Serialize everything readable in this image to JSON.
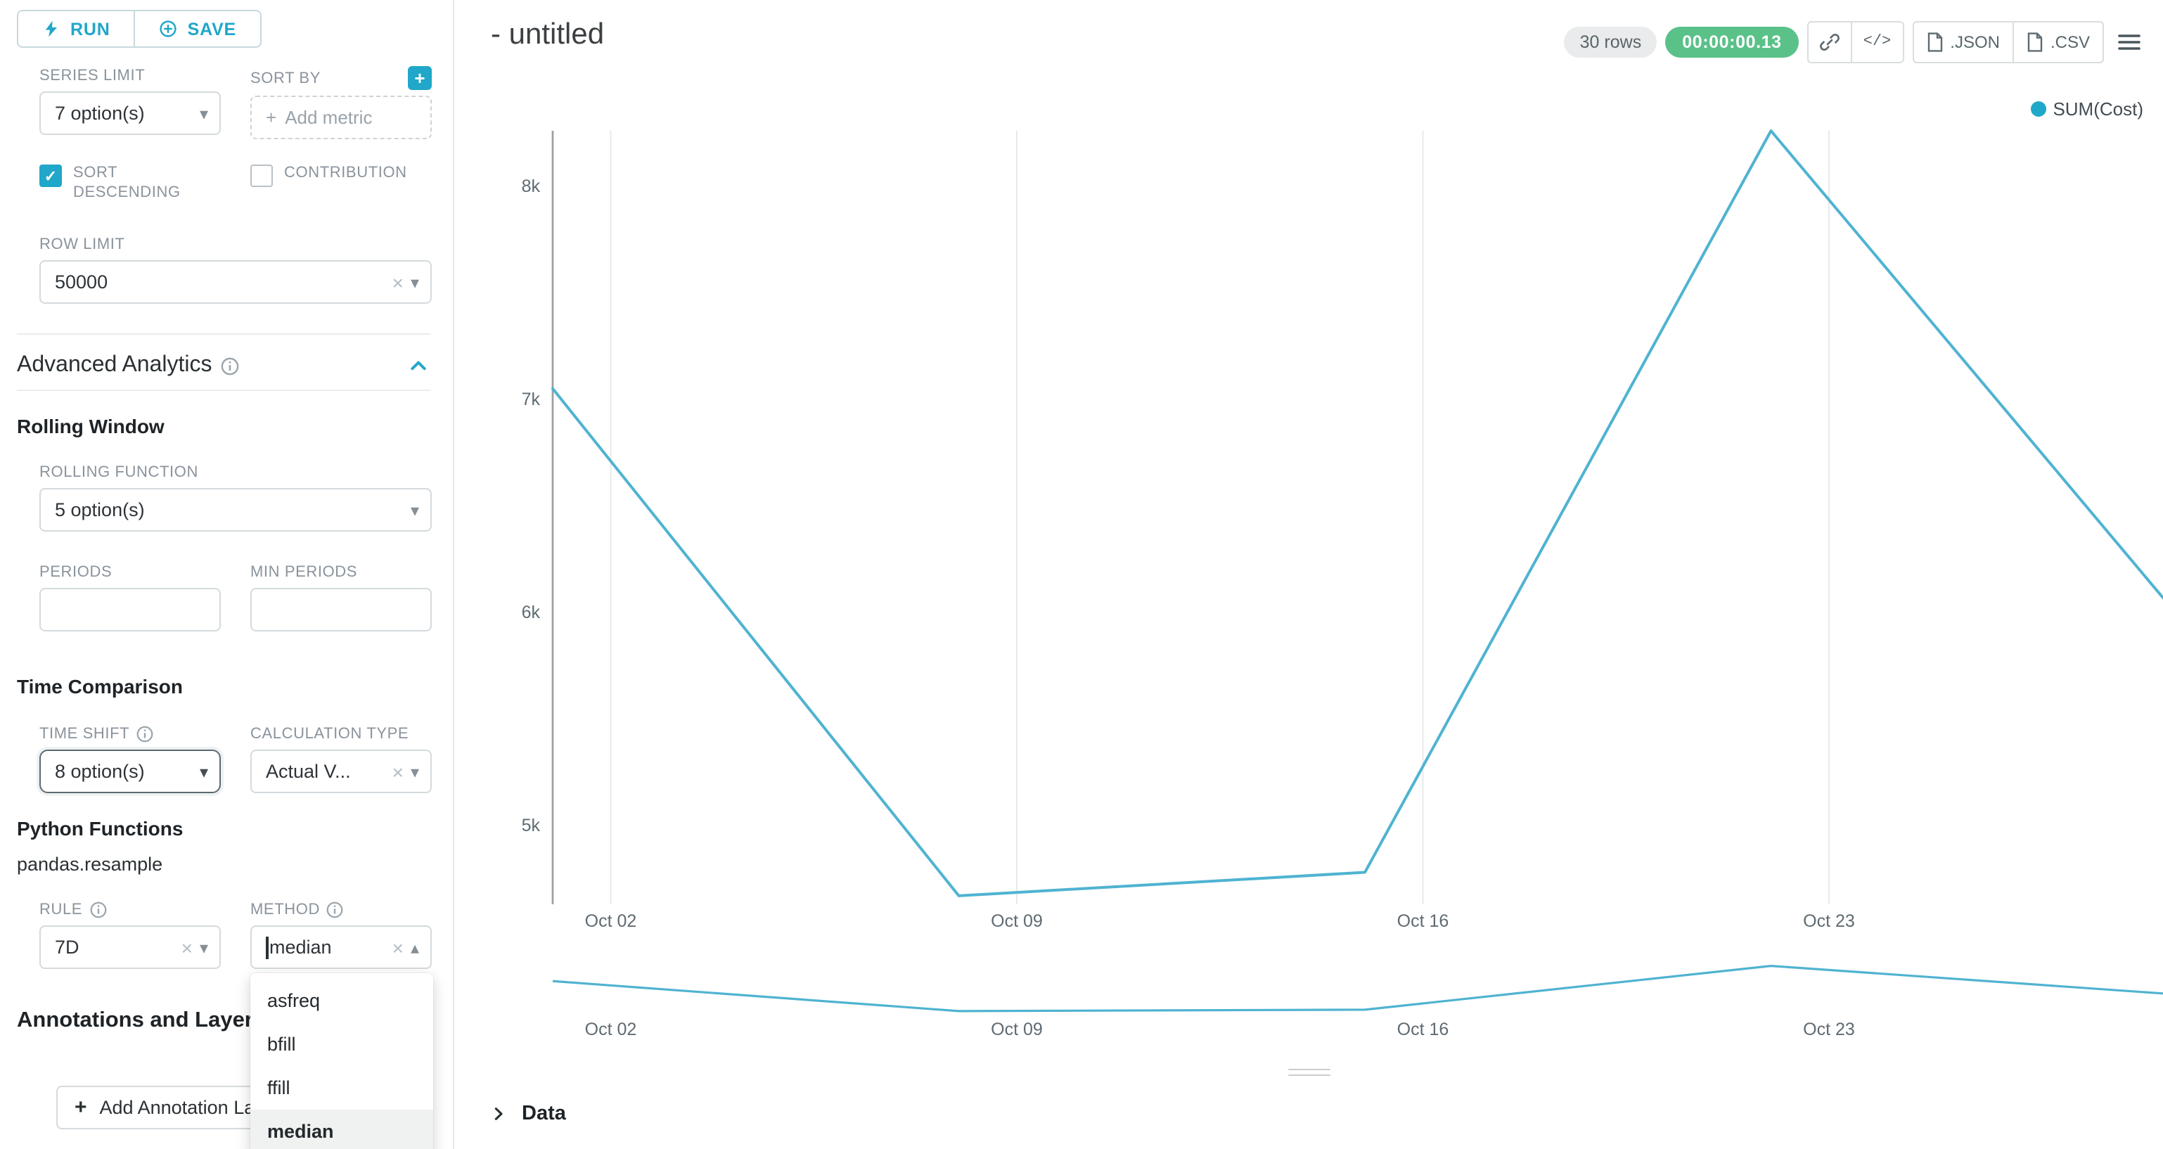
{
  "colors": {
    "accent": "#20a7c9",
    "success": "#5ac189"
  },
  "icons": {
    "caret_down": "▾",
    "caret_up": "▴",
    "clear": "×",
    "check": "✓",
    "plus": "+"
  },
  "toolbar": {
    "run": "RUN",
    "save": "SAVE"
  },
  "panel": {
    "series_limit_label": "SERIES LIMIT",
    "series_limit_value": "7 option(s)",
    "sort_by_label": "SORT BY",
    "sort_by_placeholder": "Add metric",
    "sort_descending_label": "SORT DESCENDING",
    "contribution_label": "CONTRIBUTION",
    "row_limit_label": "ROW LIMIT",
    "row_limit_value": "50000",
    "advanced_analytics_title": "Advanced Analytics",
    "rolling_window_title": "Rolling Window",
    "rolling_function_label": "ROLLING FUNCTION",
    "rolling_function_value": "5 option(s)",
    "periods_label": "PERIODS",
    "min_periods_label": "MIN PERIODS",
    "time_comparison_title": "Time Comparison",
    "time_shift_label": "TIME SHIFT",
    "time_shift_value": "8 option(s)",
    "calculation_type_label": "CALCULATION TYPE",
    "calculation_type_value": "Actual V...",
    "python_functions_title": "Python Functions",
    "resample_text": "pandas.resample",
    "rule_label": "RULE",
    "rule_value": "7D",
    "method_label": "METHOD",
    "method_value": "median",
    "method_options": [
      "asfreq",
      "bfill",
      "ffill",
      "median"
    ],
    "annotations_title": "Annotations and Layers",
    "add_annotation_label": "Add Annotation Layer"
  },
  "header": {
    "title": "- untitled",
    "rows_badge": "30 rows",
    "timer_badge": "00:00:00.13",
    "json_label": ".JSON",
    "csv_label": ".CSV",
    "code_glyph": "</>"
  },
  "datapanel": {
    "label": "Data"
  },
  "chart_data": {
    "type": "line",
    "title": "",
    "legend": {
      "label": "SUM(Cost)",
      "dot_color": "#1fa8c9",
      "position": "top-right"
    },
    "series": [
      {
        "name": "SUM(Cost)",
        "x_days": [
          0,
          7,
          14,
          21,
          28
        ],
        "x_dates": [
          "Oct 01",
          "Oct 08",
          "Oct 15",
          "Oct 22",
          "Oct 29"
        ],
        "values": [
          7050,
          4670,
          4780,
          8260,
          5990
        ]
      }
    ],
    "x_axis": {
      "tick_days": [
        1,
        8,
        15,
        22
      ],
      "tick_labels": [
        "Oct 02",
        "Oct 09",
        "Oct 16",
        "Oct 23"
      ],
      "range_days": [
        0,
        28
      ]
    },
    "y_axis": {
      "tick_values": [
        8000,
        7000,
        6000,
        5000
      ],
      "tick_labels": [
        "8k",
        "7k",
        "6k",
        "5k"
      ],
      "domain": [
        4630,
        8260
      ]
    },
    "mini_chart": {
      "y_domain": [
        4550,
        8350
      ],
      "tick_days": [
        1,
        8,
        15,
        22
      ],
      "tick_labels": [
        "Oct 02",
        "Oct 09",
        "Oct 16",
        "Oct 23"
      ]
    },
    "line_color": "#4fb3d1",
    "grid_color": "#e8e9ea",
    "axis_color": "#9aa0a4",
    "grid": "vertical-only"
  }
}
